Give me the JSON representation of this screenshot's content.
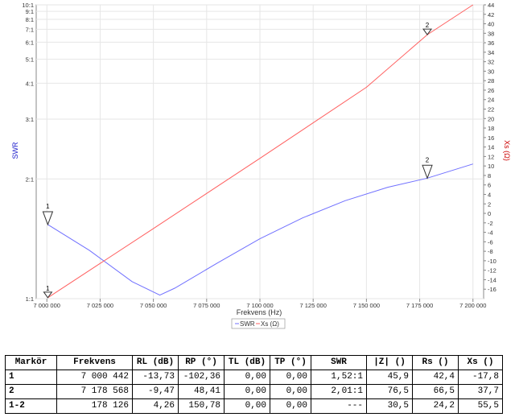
{
  "chart_data": {
    "type": "line",
    "xlabel": "Frekvens (Hz)",
    "ylabel_left": "SWR",
    "ylabel_right": "Xs (Ω)",
    "x_range": [
      6995000,
      7205000
    ],
    "x_ticks": [
      7000000,
      7025000,
      7050000,
      7075000,
      7100000,
      7125000,
      7150000,
      7175000,
      7200000
    ],
    "x_tick_labels": [
      "7 000 000",
      "7 025 000",
      "7 050 000",
      "7 075 000",
      "7 100 000",
      "7 125 000",
      "7 150 000",
      "7 175 000",
      "7 200 000"
    ],
    "y_left_scale": "reciprocal-reflection",
    "y_left_range": [
      1.0,
      10.0
    ],
    "y_left_ticks": [
      1,
      2,
      3,
      4,
      5,
      6,
      7,
      8,
      9,
      10
    ],
    "y_left_tick_labels": [
      "1:1",
      "2:1",
      "3:1",
      "4:1",
      "5:1",
      "6:1",
      "7:1",
      "8:1",
      "9:1",
      "10:1"
    ],
    "y_right_range": [
      -18,
      44
    ],
    "y_right_ticks": [
      -16,
      -14,
      -12,
      -10,
      -8,
      -6,
      -4,
      -2,
      0,
      2,
      4,
      6,
      8,
      10,
      12,
      14,
      16,
      18,
      20,
      22,
      24,
      26,
      28,
      30,
      32,
      34,
      36,
      38,
      40,
      42,
      44
    ],
    "y_right_tick_labels": [
      "-16",
      "-14",
      "-12",
      "-10",
      "-8",
      "-6",
      "-4",
      "-2",
      "0",
      "2",
      "4",
      "6",
      "8",
      "10",
      "12",
      "14",
      "16",
      "18",
      "20",
      "22",
      "24",
      "26",
      "28",
      "30",
      "32",
      "34",
      "36",
      "38",
      "40",
      "42",
      "44"
    ],
    "grid": true,
    "legend_placement": "bottom-center",
    "series": [
      {
        "name": "SWR",
        "axis": "left",
        "color": "#7070ff",
        "x": [
          7000442,
          7020000,
          7040000,
          7053000,
          7060000,
          7080000,
          7100000,
          7120000,
          7140000,
          7160000,
          7178568,
          7200000
        ],
        "y": [
          1.52,
          1.31,
          1.1,
          1.02,
          1.06,
          1.22,
          1.4,
          1.58,
          1.75,
          1.9,
          2.01,
          2.2
        ]
      },
      {
        "name": "Xs (Ω)",
        "axis": "right",
        "color": "#ff6060",
        "x": [
          7000442,
          7050000,
          7100000,
          7150000,
          7178568,
          7200000
        ],
        "y": [
          -17.8,
          -3.2,
          11.6,
          26.6,
          37.7,
          44.0
        ]
      }
    ],
    "markers": [
      {
        "label": "1",
        "x": 7000442,
        "swr": 1.52,
        "xs": -17.8
      },
      {
        "label": "2",
        "x": 7178568,
        "swr": 2.01,
        "xs": 37.7
      }
    ]
  },
  "table": {
    "headers": [
      "Markör",
      "Frekvens",
      "RL (dB)",
      "RP (°)",
      "TL (dB)",
      "TP (°)",
      "SWR",
      "|Z| ()",
      "Rs ()",
      "Xs ()"
    ],
    "rows": [
      [
        "1",
        "7 000 442",
        "-13,73",
        "-102,36",
        "0,00",
        "0,00",
        "1,52:1",
        "45,9",
        "42,4",
        "-17,8"
      ],
      [
        "2",
        "7 178 568",
        "-9,47",
        "48,41",
        "0,00",
        "0,00",
        "2,01:1",
        "76,5",
        "66,5",
        "37,7"
      ],
      [
        "1-2",
        "178 126",
        "4,26",
        "150,78",
        "0,00",
        "0,00",
        "---",
        "30,5",
        "24,2",
        "55,5"
      ]
    ]
  }
}
